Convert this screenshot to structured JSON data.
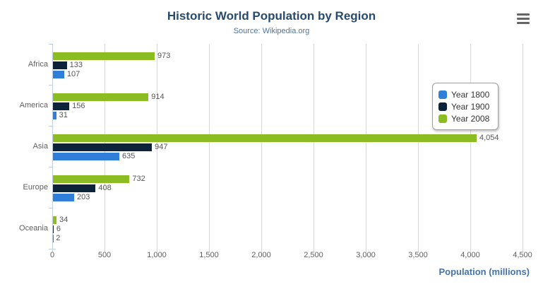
{
  "chart_data": {
    "type": "bar",
    "orientation": "horizontal",
    "title": "Historic World Population by Region",
    "subtitle": "Source: Wikipedia.org",
    "categories": [
      "Africa",
      "America",
      "Asia",
      "Europe",
      "Oceania"
    ],
    "series": [
      {
        "name": "Year 1800",
        "color": "#2f7ed8",
        "values": [
          107,
          31,
          635,
          203,
          2
        ]
      },
      {
        "name": "Year 1900",
        "color": "#0d233a",
        "values": [
          133,
          156,
          947,
          408,
          6
        ]
      },
      {
        "name": "Year 2008",
        "color": "#8bbc21",
        "values": [
          973,
          914,
          4054,
          732,
          34
        ]
      }
    ],
    "bar_order_top_to_bottom": [
      "Year 2008",
      "Year 1900",
      "Year 1800"
    ],
    "data_labels_visible": true,
    "xlabel": "Population (millions)",
    "xlim": [
      0,
      4500
    ],
    "ticks": [
      0,
      500,
      1000,
      1500,
      2000,
      2500,
      3000,
      3500,
      4000,
      4500
    ],
    "grid": true,
    "legend_position": "right"
  },
  "toolbar": {
    "context_menu_icon": "hamburger-menu"
  },
  "colors": {
    "title": "#274b6d",
    "subtitle": "#4d759e",
    "axis_title": "#4572a7",
    "gridline": "#d8d8d8",
    "axis_line": "#c0d0e0",
    "tick_label": "#606060",
    "category_label": "#606060",
    "data_label": "#555555",
    "legend_text": "#333333",
    "legend_border": "#a0a0a0",
    "menu_icon": "#666666",
    "background": "#ffffff"
  }
}
